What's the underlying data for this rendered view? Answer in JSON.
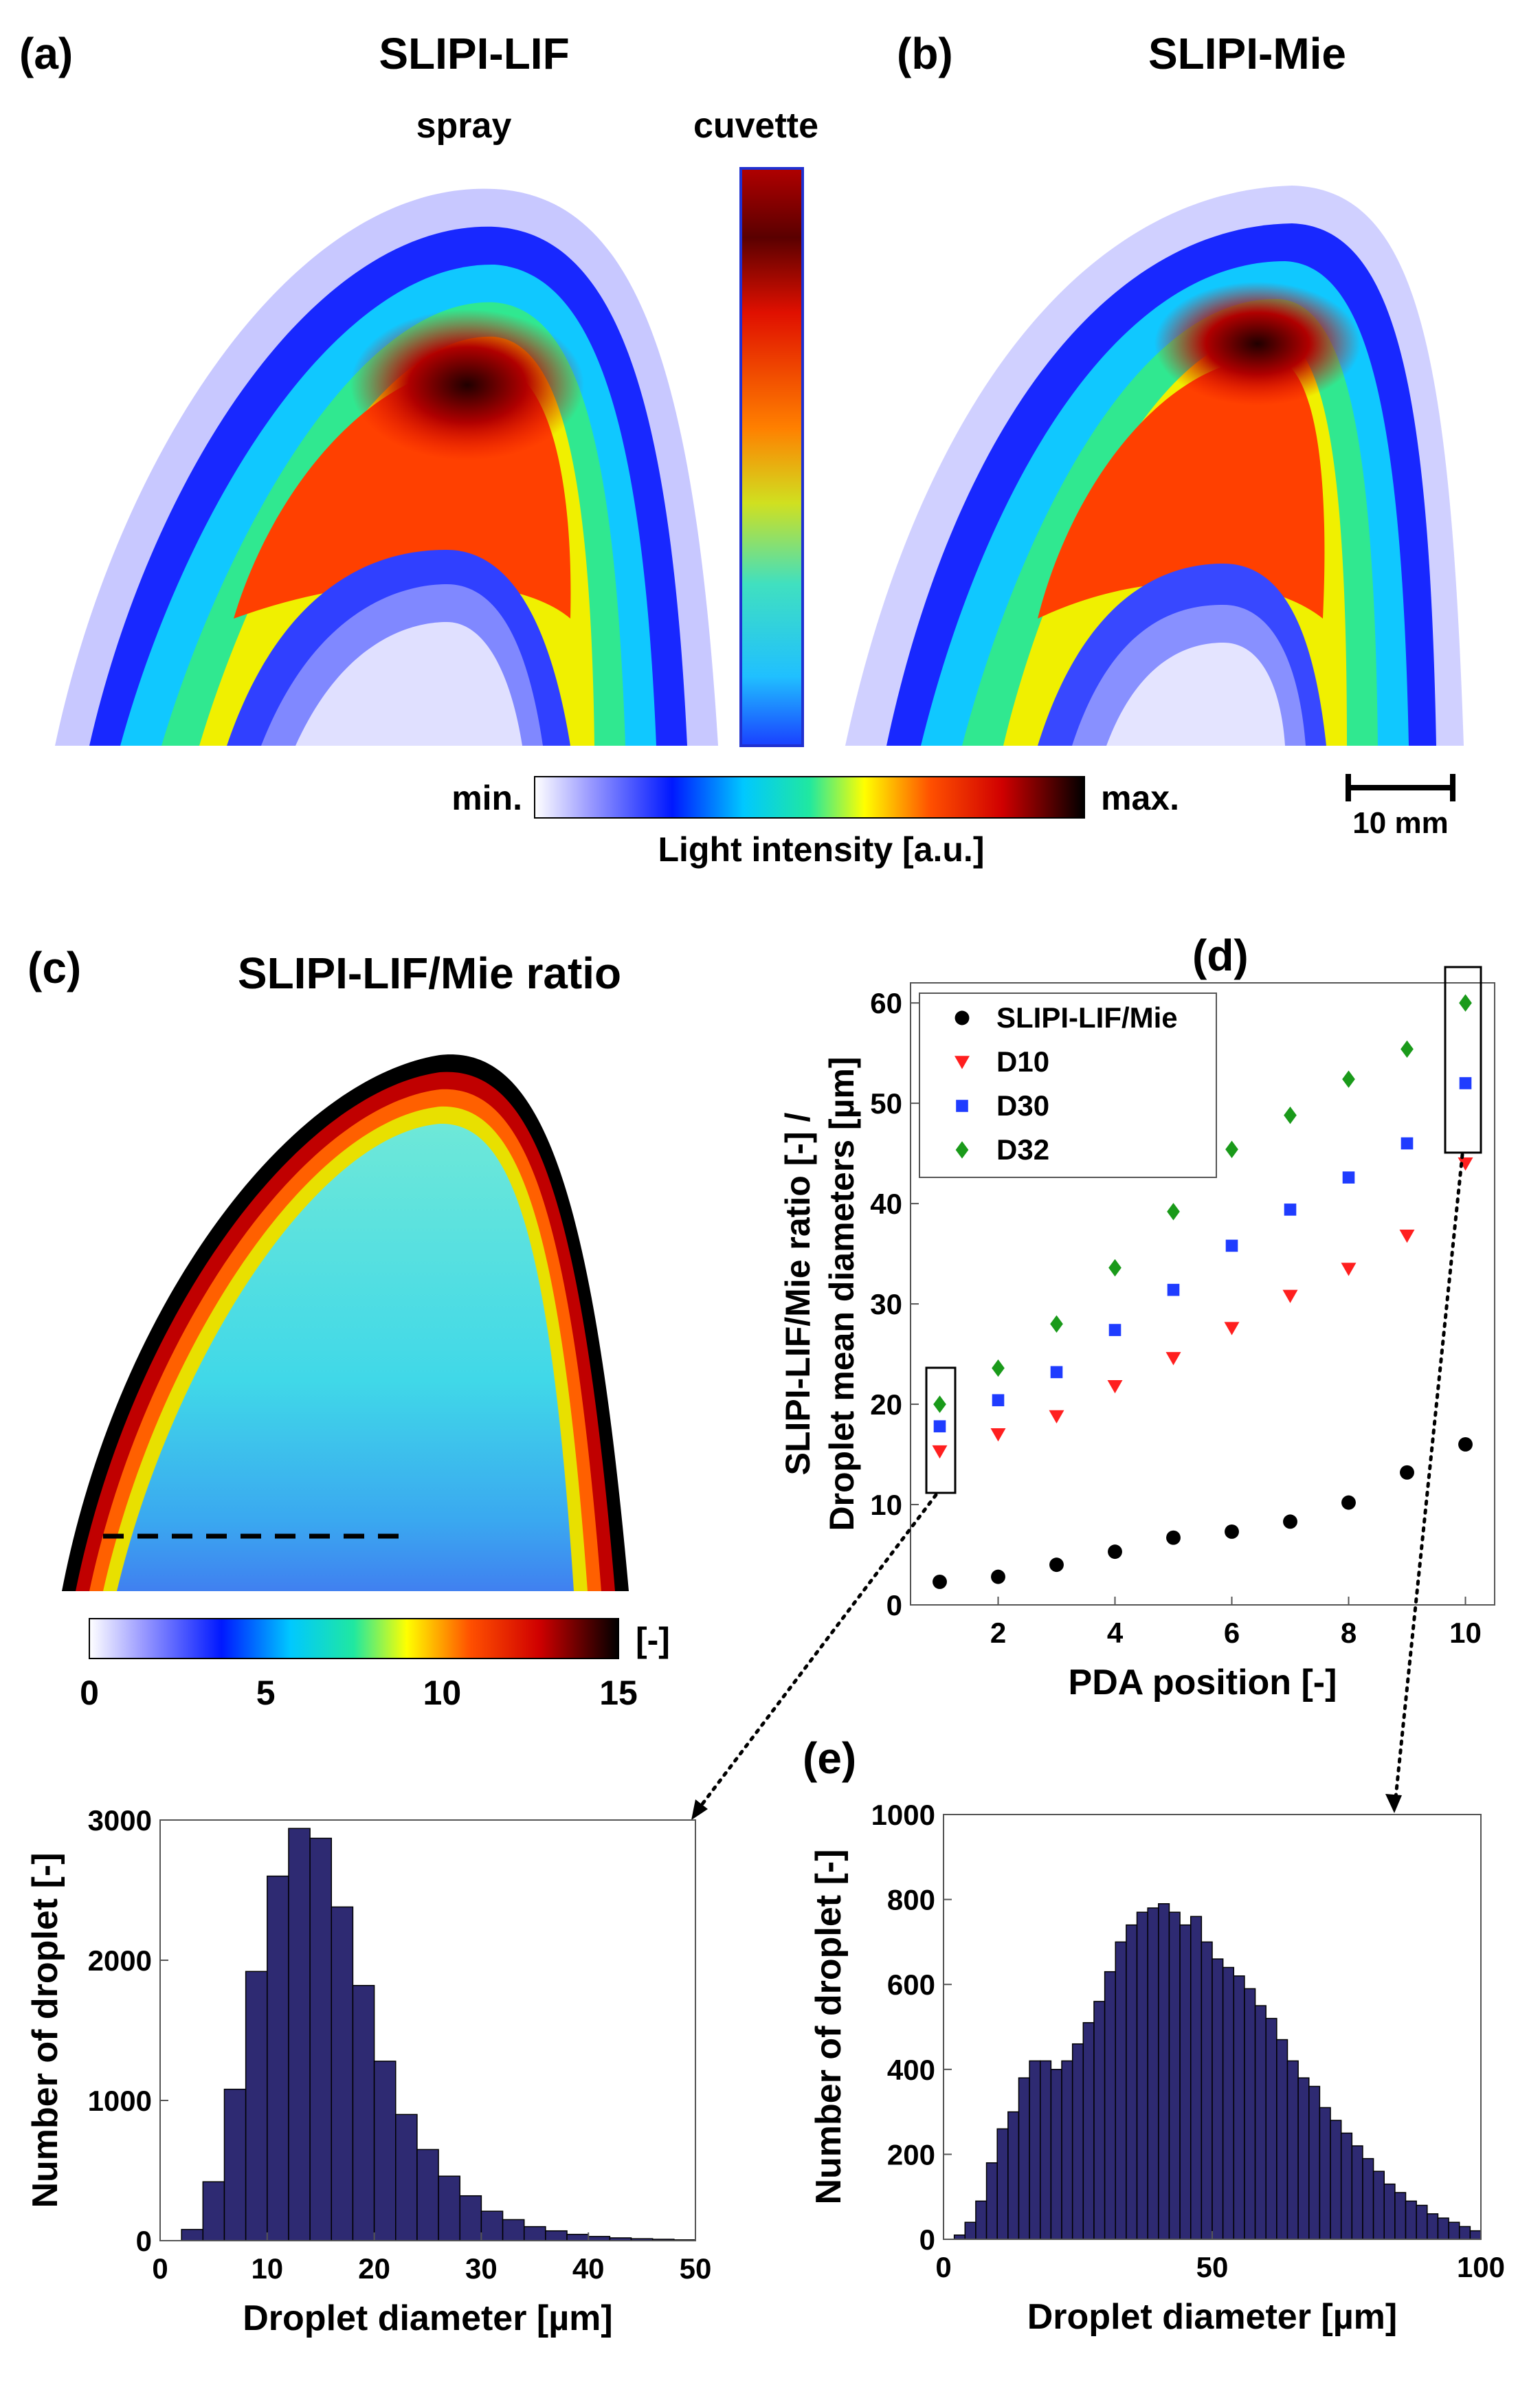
{
  "panels": {
    "a": {
      "letter": "(a)",
      "title": "SLIPI-LIF",
      "spray_label": "spray",
      "cuvette_label": "cuvette"
    },
    "b": {
      "letter": "(b)",
      "title": "SLIPI-Mie"
    },
    "c": {
      "letter": "(c)",
      "title": "SLIPI-LIF/Mie ratio"
    },
    "d": {
      "letter": "(d)"
    },
    "e": {
      "letter": "(e)"
    }
  },
  "intensity_colorbar": {
    "min_label": "min.",
    "max_label": "max.",
    "title": "Light intensity [a.u.]",
    "scale_bar_label": "10 mm"
  },
  "ratio_colorbar": {
    "unit_label": "[-]",
    "ticks": [
      0,
      5,
      10,
      15
    ]
  },
  "colors": {
    "hist_bar": "#2e2a72",
    "slipi": "#000000",
    "d10": "#ff1f1f",
    "d30": "#1f3cff",
    "d32": "#1a9a1a"
  },
  "chart_data": [
    {
      "id": "d",
      "type": "scatter",
      "title": "",
      "xlabel": "PDA position [-]",
      "ylabel_line1": "SLIPI-LIF/Mie ratio [-] /",
      "ylabel_line2": "Droplet mean diameters [µm]",
      "xlim": [
        0.5,
        10.5
      ],
      "ylim": [
        0,
        62
      ],
      "xticks": [
        2,
        4,
        6,
        8,
        10
      ],
      "yticks": [
        0,
        10,
        20,
        30,
        40,
        50,
        60
      ],
      "legend_position": "top-left",
      "x": [
        1,
        2,
        3,
        4,
        5,
        6,
        7,
        8,
        9,
        10
      ],
      "series": [
        {
          "name": "SLIPI-LIF/Mie",
          "marker": "circle",
          "values": [
            2.3,
            2.8,
            4.0,
            5.3,
            6.7,
            7.3,
            8.3,
            10.2,
            13.2,
            16.0
          ]
        },
        {
          "name": "D10",
          "marker": "triangle-down",
          "values": [
            15.3,
            17.0,
            18.8,
            21.8,
            24.6,
            27.6,
            30.8,
            33.5,
            36.8,
            44.0
          ]
        },
        {
          "name": "D30",
          "marker": "square",
          "values": [
            17.8,
            20.4,
            23.2,
            27.4,
            31.4,
            35.8,
            39.4,
            42.6,
            46.0,
            52.0
          ]
        },
        {
          "name": "D32",
          "marker": "diamond",
          "values": [
            20.0,
            23.6,
            28.0,
            33.6,
            39.2,
            45.4,
            48.8,
            52.4,
            55.4,
            60.0
          ]
        }
      ]
    },
    {
      "id": "hist_pos1",
      "type": "bar",
      "title": "",
      "xlabel": "Droplet diameter [µm]",
      "ylabel": "Number of droplet [-]",
      "xlim": [
        0,
        50
      ],
      "ylim": [
        0,
        3000
      ],
      "xticks": [
        0,
        10,
        20,
        30,
        40,
        50
      ],
      "yticks": [
        0,
        1000,
        2000,
        3000
      ],
      "bin_width": 2,
      "bin_left_edges": [
        2,
        4,
        6,
        8,
        10,
        12,
        14,
        16,
        18,
        20,
        22,
        24,
        26,
        28,
        30,
        32,
        34,
        36,
        38,
        40,
        42,
        44,
        46,
        48
      ],
      "values": [
        80,
        420,
        1080,
        1920,
        2600,
        2940,
        2870,
        2380,
        1820,
        1280,
        900,
        650,
        460,
        320,
        210,
        150,
        100,
        70,
        45,
        30,
        20,
        14,
        10,
        6
      ]
    },
    {
      "id": "hist_pos10",
      "type": "bar",
      "title": "",
      "xlabel": "Droplet diameter [µm]",
      "ylabel": "Number of droplet [-]",
      "xlim": [
        0,
        100
      ],
      "ylim": [
        0,
        1000
      ],
      "xticks": [
        0,
        50,
        100
      ],
      "yticks": [
        0,
        200,
        400,
        600,
        800,
        1000
      ],
      "bin_width": 2,
      "bin_left_edges": [
        2,
        4,
        6,
        8,
        10,
        12,
        14,
        16,
        18,
        20,
        22,
        24,
        26,
        28,
        30,
        32,
        34,
        36,
        38,
        40,
        42,
        44,
        46,
        48,
        50,
        52,
        54,
        56,
        58,
        60,
        62,
        64,
        66,
        68,
        70,
        72,
        74,
        76,
        78,
        80,
        82,
        84,
        86,
        88,
        90,
        92,
        94,
        96,
        98
      ],
      "values": [
        10,
        40,
        90,
        180,
        260,
        300,
        380,
        420,
        420,
        400,
        420,
        460,
        510,
        560,
        630,
        700,
        740,
        770,
        780,
        790,
        770,
        740,
        760,
        700,
        660,
        640,
        620,
        590,
        550,
        520,
        470,
        420,
        380,
        360,
        310,
        280,
        250,
        220,
        190,
        160,
        130,
        110,
        90,
        80,
        60,
        50,
        40,
        30,
        20
      ]
    }
  ]
}
